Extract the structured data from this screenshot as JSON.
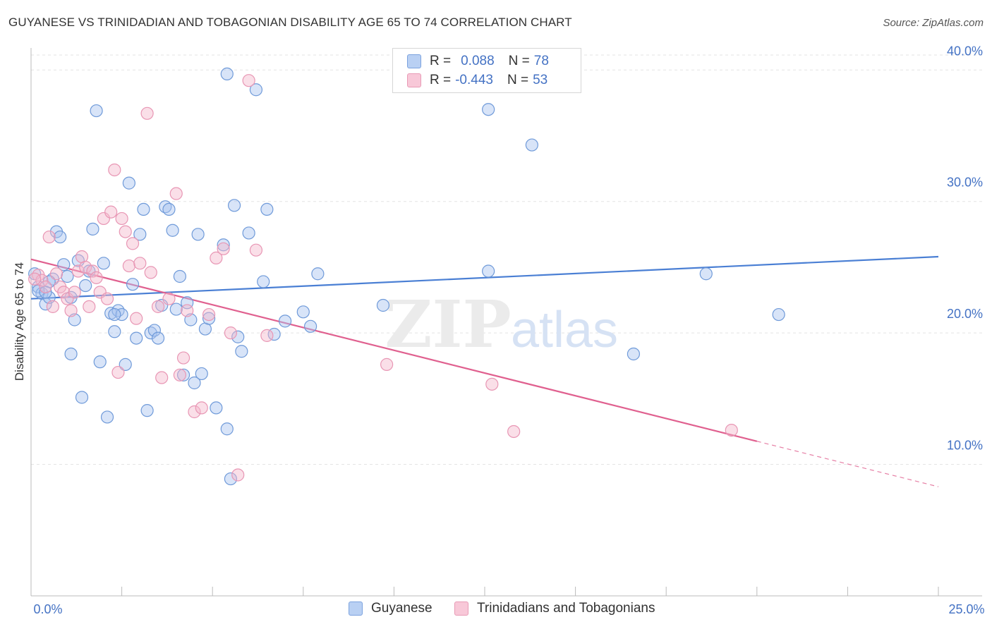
{
  "title": "GUYANESE VS TRINIDADIAN AND TOBAGONIAN DISABILITY AGE 65 TO 74 CORRELATION CHART",
  "source": "Source: ZipAtlas.com",
  "watermark": {
    "zip": "ZIP",
    "atlas": "atlas"
  },
  "legend": {
    "series1": {
      "r_label": "R =",
      "r_value": "0.088",
      "n_label": "N =",
      "n_value": "78"
    },
    "series2": {
      "r_label": "R =",
      "r_value": "-0.443",
      "n_label": "N =",
      "n_value": "53"
    }
  },
  "bottom_legend": {
    "series1": "Guyanese",
    "series2": "Trinidadians and Tobagonians"
  },
  "colors": {
    "blue": "#4a7fd4",
    "blue_fill": "#a8c4ef",
    "pink": "#e0608f",
    "pink_fill": "#f4b8cc",
    "axis_text": "#4472c4"
  },
  "chart_data": {
    "type": "scatter",
    "xlabel": "",
    "ylabel": "Disability Age 65 to 74",
    "xlim": [
      0,
      25
    ],
    "ylim": [
      0,
      42
    ],
    "x_tick_labels": [
      "0.0%",
      "25.0%"
    ],
    "y_ticks": [
      10,
      20,
      30,
      40
    ],
    "y_tick_labels": [
      "10.0%",
      "20.0%",
      "30.0%",
      "40.0%"
    ],
    "grid": true,
    "series": [
      {
        "name": "Guyanese",
        "color": "#4a7fd4",
        "trend": {
          "x": [
            0,
            25
          ],
          "y": [
            22.6,
            25.8
          ],
          "dashed_from": null
        },
        "points": [
          [
            0.1,
            24.5
          ],
          [
            0.2,
            23.5
          ],
          [
            0.3,
            23.0
          ],
          [
            0.4,
            22.2
          ],
          [
            0.5,
            22.7
          ],
          [
            0.6,
            24.1
          ],
          [
            0.7,
            27.7
          ],
          [
            0.8,
            27.3
          ],
          [
            0.9,
            25.2
          ],
          [
            1.0,
            24.3
          ],
          [
            1.1,
            18.4
          ],
          [
            1.2,
            21.0
          ],
          [
            1.3,
            25.5
          ],
          [
            1.4,
            15.1
          ],
          [
            1.5,
            23.6
          ],
          [
            1.6,
            24.7
          ],
          [
            1.7,
            27.9
          ],
          [
            1.8,
            36.9
          ],
          [
            1.9,
            17.8
          ],
          [
            2.0,
            25.3
          ],
          [
            2.1,
            13.6
          ],
          [
            2.2,
            21.5
          ],
          [
            2.3,
            20.1
          ],
          [
            2.4,
            21.7
          ],
          [
            2.5,
            21.4
          ],
          [
            2.6,
            17.6
          ],
          [
            2.7,
            31.4
          ],
          [
            2.8,
            23.7
          ],
          [
            2.9,
            19.6
          ],
          [
            3.0,
            27.5
          ],
          [
            3.1,
            29.4
          ],
          [
            3.2,
            14.1
          ],
          [
            3.3,
            20.0
          ],
          [
            3.4,
            20.2
          ],
          [
            3.5,
            19.6
          ],
          [
            3.6,
            22.1
          ],
          [
            3.7,
            29.6
          ],
          [
            3.8,
            29.4
          ],
          [
            3.9,
            27.8
          ],
          [
            4.0,
            21.8
          ],
          [
            4.1,
            24.3
          ],
          [
            4.2,
            16.8
          ],
          [
            4.3,
            22.3
          ],
          [
            4.4,
            21.0
          ],
          [
            4.5,
            16.2
          ],
          [
            4.6,
            27.5
          ],
          [
            4.7,
            16.9
          ],
          [
            4.8,
            20.3
          ],
          [
            4.9,
            21.1
          ],
          [
            5.1,
            14.3
          ],
          [
            5.3,
            26.7
          ],
          [
            5.4,
            12.7
          ],
          [
            5.5,
            8.9
          ],
          [
            5.6,
            29.7
          ],
          [
            5.7,
            19.7
          ],
          [
            5.8,
            18.6
          ],
          [
            6.0,
            27.6
          ],
          [
            6.2,
            38.5
          ],
          [
            6.4,
            23.9
          ],
          [
            6.5,
            29.4
          ],
          [
            6.7,
            19.9
          ],
          [
            7.0,
            20.9
          ],
          [
            7.5,
            21.6
          ],
          [
            7.7,
            20.5
          ],
          [
            7.9,
            24.5
          ],
          [
            9.7,
            22.1
          ],
          [
            12.6,
            37.0
          ],
          [
            12.6,
            24.7
          ],
          [
            13.8,
            34.3
          ],
          [
            16.6,
            18.4
          ],
          [
            18.6,
            24.5
          ],
          [
            20.6,
            21.4
          ],
          [
            5.4,
            39.7
          ],
          [
            0.2,
            23.2
          ],
          [
            0.5,
            23.9
          ],
          [
            2.3,
            21.4
          ],
          [
            1.1,
            22.7
          ],
          [
            0.4,
            23.1
          ]
        ]
      },
      {
        "name": "Trinidadians and Tobagonians",
        "color": "#e0608f",
        "trend": {
          "x": [
            0,
            25
          ],
          "y": [
            25.6,
            8.3
          ],
          "dashed_from": 20.0
        },
        "points": [
          [
            0.2,
            24.4
          ],
          [
            0.3,
            24.0
          ],
          [
            0.4,
            23.5
          ],
          [
            0.5,
            27.3
          ],
          [
            0.6,
            22.0
          ],
          [
            0.7,
            24.5
          ],
          [
            0.8,
            23.5
          ],
          [
            0.9,
            23.1
          ],
          [
            1.0,
            22.6
          ],
          [
            1.1,
            21.7
          ],
          [
            1.2,
            23.1
          ],
          [
            1.3,
            24.7
          ],
          [
            1.4,
            25.8
          ],
          [
            1.5,
            25.0
          ],
          [
            1.6,
            22.0
          ],
          [
            1.7,
            24.7
          ],
          [
            1.8,
            24.2
          ],
          [
            1.9,
            23.1
          ],
          [
            2.0,
            28.7
          ],
          [
            2.1,
            22.6
          ],
          [
            2.2,
            29.2
          ],
          [
            2.3,
            32.4
          ],
          [
            2.4,
            17.0
          ],
          [
            2.5,
            28.7
          ],
          [
            2.6,
            27.7
          ],
          [
            2.7,
            25.1
          ],
          [
            2.8,
            26.8
          ],
          [
            2.9,
            21.1
          ],
          [
            3.0,
            25.3
          ],
          [
            3.2,
            36.7
          ],
          [
            3.3,
            24.6
          ],
          [
            3.5,
            22.0
          ],
          [
            3.6,
            16.6
          ],
          [
            3.8,
            22.6
          ],
          [
            4.0,
            30.6
          ],
          [
            4.1,
            16.8
          ],
          [
            4.2,
            18.1
          ],
          [
            4.3,
            21.7
          ],
          [
            4.5,
            14.0
          ],
          [
            4.7,
            14.3
          ],
          [
            4.9,
            21.4
          ],
          [
            5.1,
            25.7
          ],
          [
            5.3,
            26.4
          ],
          [
            5.5,
            20.0
          ],
          [
            5.7,
            9.2
          ],
          [
            6.0,
            39.2
          ],
          [
            6.2,
            26.3
          ],
          [
            6.5,
            19.8
          ],
          [
            9.8,
            17.6
          ],
          [
            12.7,
            16.1
          ],
          [
            13.3,
            12.5
          ],
          [
            19.3,
            12.6
          ],
          [
            0.1,
            24.1
          ]
        ]
      }
    ]
  }
}
